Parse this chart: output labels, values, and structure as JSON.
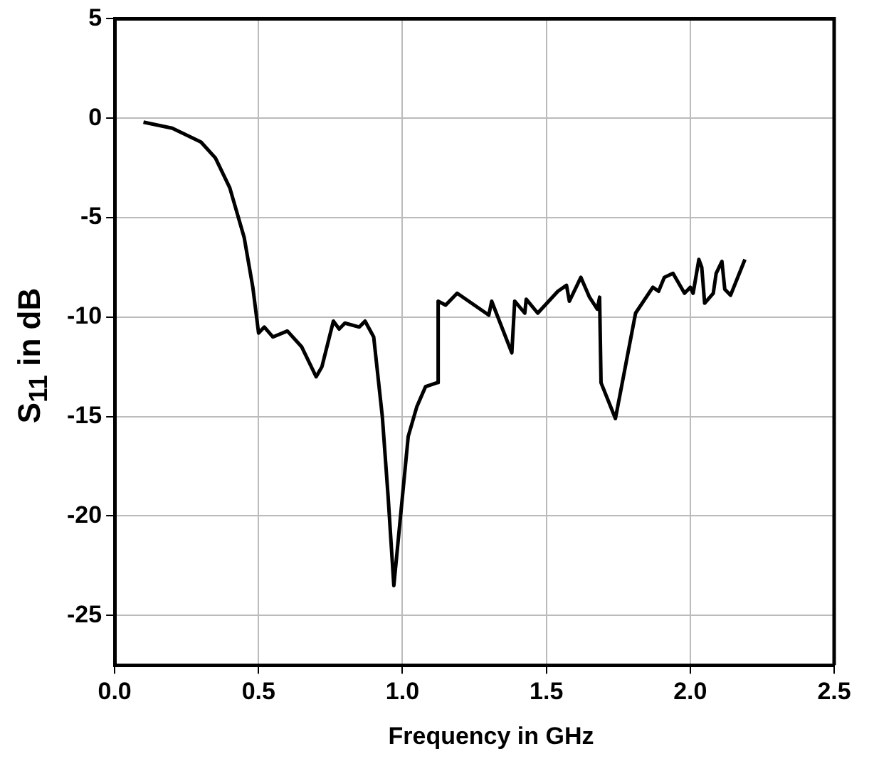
{
  "chart_data": {
    "type": "line",
    "xlabel": "Frequency in GHz",
    "ylabel": "S$_{11}$ in dB",
    "xlim": [
      0,
      2.5
    ],
    "xticks": [
      {
        "value": 0,
        "label": "0.0"
      },
      0.5,
      {
        "value": 1,
        "label": "1.0"
      },
      1.5,
      {
        "value": 2,
        "label": "2.0"
      },
      2.5
    ],
    "ylim": [
      -27.5,
      5
    ],
    "yticks": [
      -25,
      -20,
      -15,
      -10,
      -5,
      0,
      5
    ],
    "grid": true,
    "legend": false,
    "marker": "none",
    "line_style": "solid",
    "series": [
      {
        "color": "#000000",
        "x": [
          0.1,
          0.2,
          0.3,
          0.35,
          0.4,
          0.45,
          0.48,
          0.5,
          0.52,
          0.55,
          0.6,
          0.65,
          0.7,
          0.72,
          0.76,
          0.78,
          0.8,
          0.85,
          0.87,
          0.9,
          0.93,
          0.95,
          0.97,
          0.98,
          1.0,
          1.02,
          1.05,
          1.08,
          1.12,
          1.124,
          1.15,
          1.19,
          1.3,
          1.31,
          1.38,
          1.39,
          1.425,
          1.43,
          1.47,
          1.54,
          1.57,
          1.58,
          1.62,
          1.65,
          1.677,
          1.685,
          1.69,
          1.74,
          1.81,
          1.87,
          1.89,
          1.91,
          1.94,
          1.98,
          2.0,
          2.01,
          2.03,
          2.04,
          2.05,
          2.08,
          2.09,
          2.11,
          2.12,
          2.14,
          2.19
        ],
        "values": [
          -0.2,
          -0.5,
          -1.2,
          -2,
          -3.5,
          -6,
          -8.5,
          -10.8,
          -10.5,
          -11,
          -10.7,
          -11.5,
          -13,
          -12.5,
          -10.2,
          -10.6,
          -10.3,
          -10.5,
          -10.2,
          -11,
          -15,
          -19,
          -23.5,
          -22,
          -19,
          -16,
          -14.5,
          -13.5,
          -13.3,
          -9.2,
          -9.4,
          -8.8,
          -9.9,
          -9.2,
          -11.8,
          -9.2,
          -9.8,
          -9.1,
          -9.8,
          -8.7,
          -8.4,
          -9.2,
          -8,
          -9,
          -9.6,
          -9,
          -13.3,
          -15.1,
          -9.8,
          -8.5,
          -8.7,
          -8,
          -7.8,
          -8.8,
          -8.5,
          -8.8,
          -7.1,
          -7.5,
          -9.3,
          -8.8,
          -7.8,
          -7.2,
          -8.6,
          -8.9,
          -7.1
        ]
      }
    ]
  }
}
